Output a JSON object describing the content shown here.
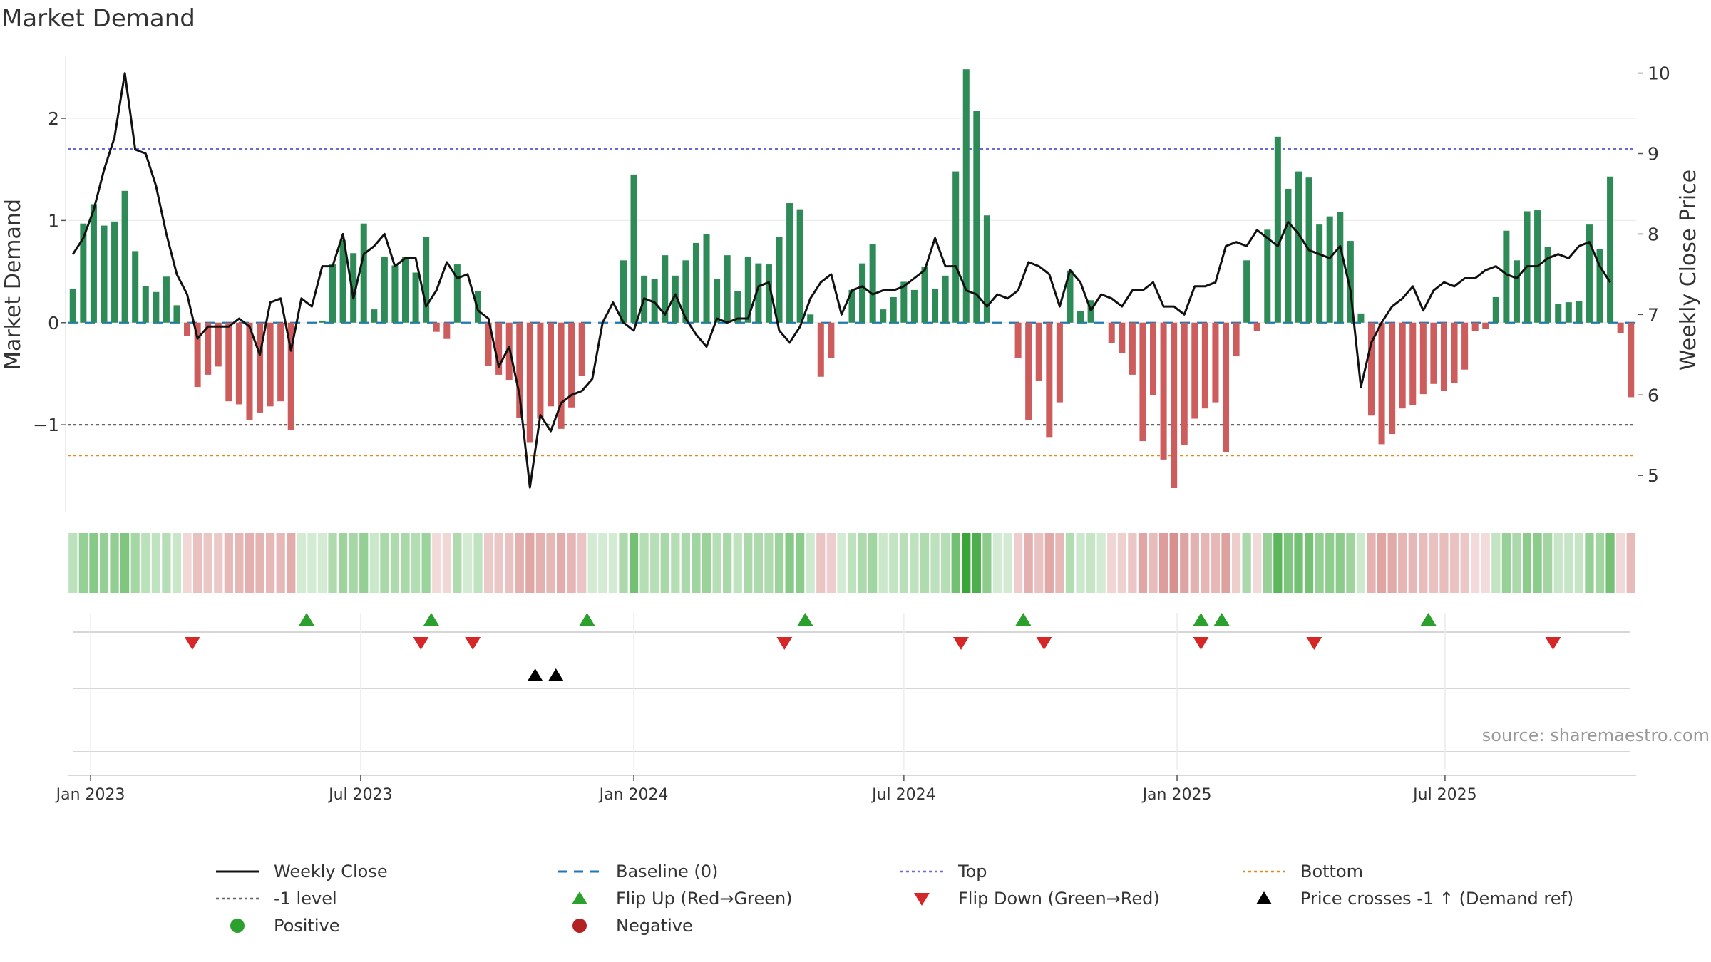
{
  "title": "Market Demand",
  "source": "source: sharemaestro.com",
  "colors": {
    "positive_bar": "#2e8b57",
    "negative_bar": "#cd5c5c",
    "price_line": "#111111",
    "top_line": "#6a6ad6",
    "bottom_line": "#e08a1e",
    "minus_one_line": "#666666",
    "baseline": "#1f77b4",
    "flip_up": "#2ca02c",
    "flip_down": "#d62728",
    "cross": "#000000",
    "positive_dot": "#2ca02c",
    "negative_dot": "#b22222"
  },
  "legend": [
    {
      "label": "Weekly Close",
      "symbol": "solid-line",
      "color": "#111111"
    },
    {
      "label": "Baseline (0)",
      "symbol": "dashed-line",
      "color": "#1f77b4"
    },
    {
      "label": "Top",
      "symbol": "dotted-line",
      "color": "#6a6ad6"
    },
    {
      "label": "Bottom",
      "symbol": "dotted-line",
      "color": "#e08a1e"
    },
    {
      "label": "-1 level",
      "symbol": "dotted-line",
      "color": "#666666"
    },
    {
      "label": "Flip Up (Red→Green)",
      "symbol": "triangle-up",
      "color": "#2ca02c"
    },
    {
      "label": "Flip Down (Green→Red)",
      "symbol": "triangle-down",
      "color": "#d62728"
    },
    {
      "label": "Price crosses -1 ↑ (Demand ref)",
      "symbol": "triangle-up",
      "color": "#000000"
    },
    {
      "label": "Positive",
      "symbol": "circle",
      "color": "#2ca02c"
    },
    {
      "label": "Negative",
      "symbol": "circle",
      "color": "#b22222"
    }
  ],
  "chart_data": {
    "type": "bar",
    "title": "Market Demand",
    "ylabel": "Market Demand",
    "y2label": "Weekly Close Price",
    "ylim": [
      -1.85,
      2.6
    ],
    "y2lim": [
      4.55,
      10.2
    ],
    "yticks": [
      2,
      1,
      0,
      -1
    ],
    "ytick_labels": [
      "2",
      "1",
      "0",
      "−1"
    ],
    "y2ticks": [
      10,
      9,
      8,
      7,
      6,
      5
    ],
    "y2tick_labels": [
      "10",
      "9",
      "8",
      "7",
      "6",
      "5"
    ],
    "reference_lines": {
      "top": 1.7,
      "bottom": -1.3,
      "minus_one": -1.0,
      "baseline": 0
    },
    "x_start_label": "2022-12-19",
    "week_offset_of_first_bar": 0,
    "xticks": [
      {
        "label": "Jan 2023",
        "week": 1.7
      },
      {
        "label": "Jul 2023",
        "week": 27.7
      },
      {
        "label": "Jan 2024",
        "week": 54.0
      },
      {
        "label": "Jul 2024",
        "week": 80.0
      },
      {
        "label": "Jan 2025",
        "week": 106.3
      },
      {
        "label": "Jul 2025",
        "week": 132.1
      }
    ],
    "series": [
      {
        "name": "Market Demand",
        "values": [
          0.33,
          0.97,
          1.16,
          0.95,
          0.99,
          1.29,
          0.7,
          0.36,
          0.3,
          0.45,
          0.17,
          -0.13,
          -0.63,
          -0.51,
          -0.43,
          -0.77,
          -0.8,
          -0.95,
          -0.88,
          -0.82,
          -0.77,
          -1.05,
          0.0,
          0.0,
          0.02,
          0.57,
          0.81,
          0.68,
          0.97,
          0.13,
          0.64,
          0.56,
          0.64,
          0.49,
          0.84,
          -0.09,
          -0.16,
          0.57,
          0.0,
          0.31,
          -0.42,
          -0.51,
          -0.56,
          -0.93,
          -1.17,
          -0.94,
          -0.82,
          -1.04,
          -0.83,
          -0.52,
          0.0,
          0.0,
          0.0,
          0.61,
          1.45,
          0.46,
          0.43,
          0.66,
          0.46,
          0.61,
          0.78,
          0.87,
          0.43,
          0.66,
          0.31,
          0.64,
          0.58,
          0.57,
          0.84,
          1.17,
          1.11,
          0.08,
          -0.53,
          -0.35,
          0.0,
          0.32,
          0.58,
          0.77,
          0.13,
          0.25,
          0.4,
          0.32,
          0.55,
          0.33,
          0.46,
          1.48,
          2.48,
          2.07,
          1.05,
          0.0,
          0.0,
          -0.35,
          -0.95,
          -0.57,
          -1.12,
          -0.78,
          0.51,
          0.11,
          0.22,
          0.0,
          -0.2,
          -0.3,
          -0.51,
          -1.16,
          -0.71,
          -1.34,
          -1.62,
          -1.2,
          -0.94,
          -0.84,
          -0.78,
          -1.27,
          -0.33,
          0.61,
          -0.08,
          0.91,
          1.82,
          1.31,
          1.48,
          1.42,
          0.96,
          1.04,
          1.08,
          0.8,
          0.09,
          -0.91,
          -1.19,
          -1.09,
          -0.84,
          -0.81,
          -0.7,
          -0.6,
          -0.67,
          -0.59,
          -0.46,
          -0.08,
          -0.06,
          0.25,
          0.9,
          0.61,
          1.09,
          1.1,
          0.74,
          0.18,
          0.2,
          0.21,
          0.96,
          0.72,
          1.43,
          -0.1,
          -0.73
        ]
      },
      {
        "name": "Weekly Close",
        "axis": "right",
        "values": [
          7.75,
          7.95,
          8.3,
          8.8,
          9.2,
          10.0,
          9.05,
          9.0,
          8.6,
          8.0,
          7.5,
          7.25,
          6.7,
          6.85,
          6.85,
          6.85,
          6.95,
          6.85,
          6.5,
          7.15,
          7.2,
          6.55,
          7.2,
          7.1,
          7.6,
          7.6,
          8.0,
          7.2,
          7.75,
          7.85,
          8.0,
          7.6,
          7.7,
          7.7,
          7.1,
          7.3,
          7.65,
          7.45,
          7.5,
          7.05,
          6.95,
          6.35,
          6.6,
          6.0,
          4.85,
          5.75,
          5.55,
          5.9,
          6.0,
          6.05,
          6.2,
          6.9,
          7.15,
          6.9,
          6.8,
          7.2,
          7.15,
          7.0,
          7.25,
          6.95,
          6.75,
          6.6,
          6.95,
          6.9,
          6.95,
          6.95,
          7.35,
          7.4,
          6.8,
          6.65,
          6.85,
          7.2,
          7.4,
          7.5,
          7.0,
          7.3,
          7.35,
          7.25,
          7.3,
          7.3,
          7.35,
          7.45,
          7.55,
          7.95,
          7.6,
          7.6,
          7.3,
          7.25,
          7.1,
          7.25,
          7.2,
          7.3,
          7.65,
          7.6,
          7.5,
          7.1,
          7.55,
          7.4,
          7.05,
          7.25,
          7.2,
          7.1,
          7.3,
          7.3,
          7.4,
          7.1,
          7.1,
          7.0,
          7.35,
          7.35,
          7.4,
          7.85,
          7.9,
          7.85,
          8.05,
          7.95,
          7.85,
          8.15,
          8.0,
          7.8,
          7.75,
          7.7,
          7.85,
          7.3,
          6.1,
          6.65,
          6.9,
          7.1,
          7.2,
          7.35,
          7.05,
          7.3,
          7.4,
          7.35,
          7.45,
          7.45,
          7.55,
          7.6,
          7.5,
          7.45,
          7.6,
          7.6,
          7.7,
          7.75,
          7.7,
          7.85,
          7.9,
          7.6,
          7.4
        ]
      }
    ],
    "flip_up_weeks": [
      22.5,
      34.5,
      49.5,
      70.5,
      91.5,
      108.6,
      110.6,
      130.5
    ],
    "flip_down_weeks": [
      11.5,
      33.5,
      38.5,
      68.5,
      85.5,
      93.5,
      108.6,
      119.5,
      142.5
    ],
    "price_cross_weeks": [
      44.5,
      46.5
    ]
  }
}
